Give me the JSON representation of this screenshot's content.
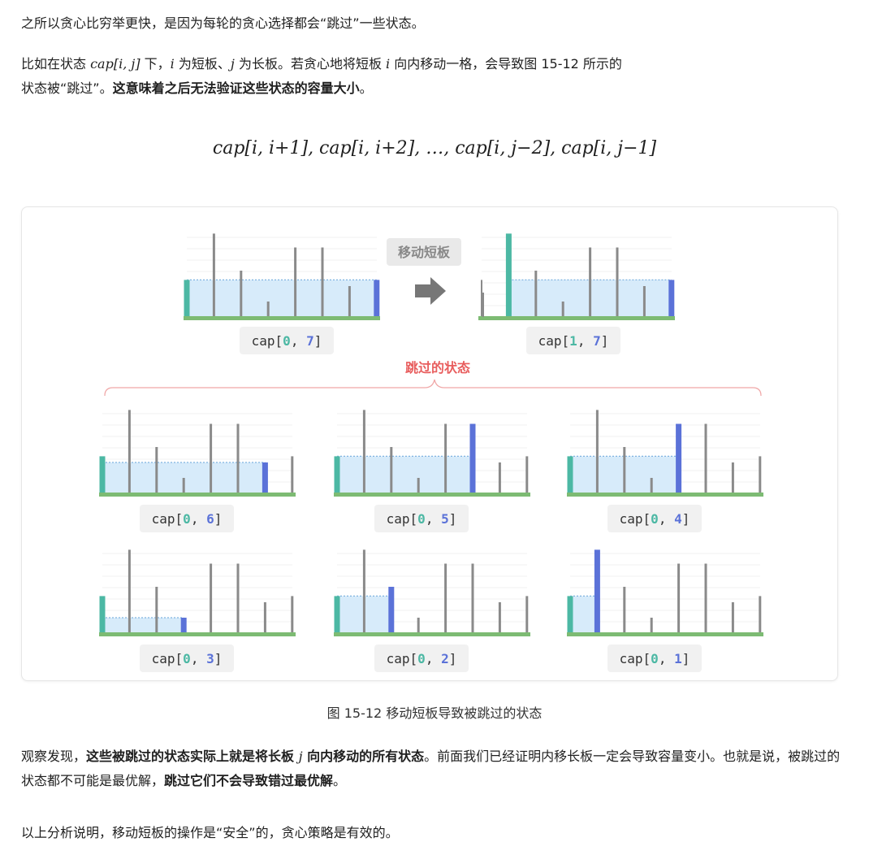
{
  "para1": {
    "text": "之所以贪心比穷举更快，是因为每轮的贪心选择都会“跳过”一些状态。"
  },
  "para2": {
    "t1": "比如在状态 ",
    "m1": "cap[i, j]",
    "t2": " 下，",
    "m2": "i",
    "t3": " 为短板、",
    "m3": "j",
    "t4": " 为长板。若贪心地将短板 ",
    "m4": "i",
    "t5": " 向内移动一格，会导致图 15-12 所示的",
    "t6": "状态被“跳过”。",
    "bold": "这意味着之后无法验证这些状态的容量大小",
    "t7": "。"
  },
  "formula": "cap[i, i+1], cap[i, i+2], …, cap[i, j−2], cap[i, j−1]",
  "figure": {
    "arrow_label": "移动短板",
    "skipped_label": "跳过的状态",
    "colors": {
      "left": "#4cb8a4",
      "right": "#5b72d8",
      "bar": "#8a8a8a",
      "water": "#d7ebfa",
      "ground": "#7dbb73",
      "skip": "#e85d5d"
    },
    "top": [
      {
        "prefix": "cap[",
        "a": "0",
        "sep": ", ",
        "b": "7",
        "suffix": "]"
      },
      {
        "prefix": "cap[",
        "a": "1",
        "sep": ", ",
        "b": "7",
        "suffix": "]"
      }
    ],
    "grid": [
      {
        "prefix": "cap[",
        "a": "0",
        "sep": ", ",
        "b": "6",
        "suffix": "]"
      },
      {
        "prefix": "cap[",
        "a": "0",
        "sep": ", ",
        "b": "5",
        "suffix": "]"
      },
      {
        "prefix": "cap[",
        "a": "0",
        "sep": ", ",
        "b": "4",
        "suffix": "]"
      },
      {
        "prefix": "cap[",
        "a": "0",
        "sep": ", ",
        "b": "3",
        "suffix": "]"
      },
      {
        "prefix": "cap[",
        "a": "0",
        "sep": ", ",
        "b": "2",
        "suffix": "]"
      },
      {
        "prefix": "cap[",
        "a": "0",
        "sep": ", ",
        "b": "1",
        "suffix": "]"
      }
    ]
  },
  "caption": "图 15-12   移动短板导致被跳过的状态",
  "para3": {
    "t1": "观察发现，",
    "bold1": "这些被跳过的状态实际上就是将长板 ",
    "m1": "j",
    "bold2": " 向内移动的所有状态",
    "t2": "。前面我们已经证明内移长板一定会导致容量变小。也就是说，被跳过的状态都不可能是最优解，",
    "bold3": "跳过它们不会导致错过最优解",
    "t3": "。"
  },
  "para4": {
    "text": "以上分析说明，移动短板的操作是“安全”的，贪心策略是有效的。"
  }
}
